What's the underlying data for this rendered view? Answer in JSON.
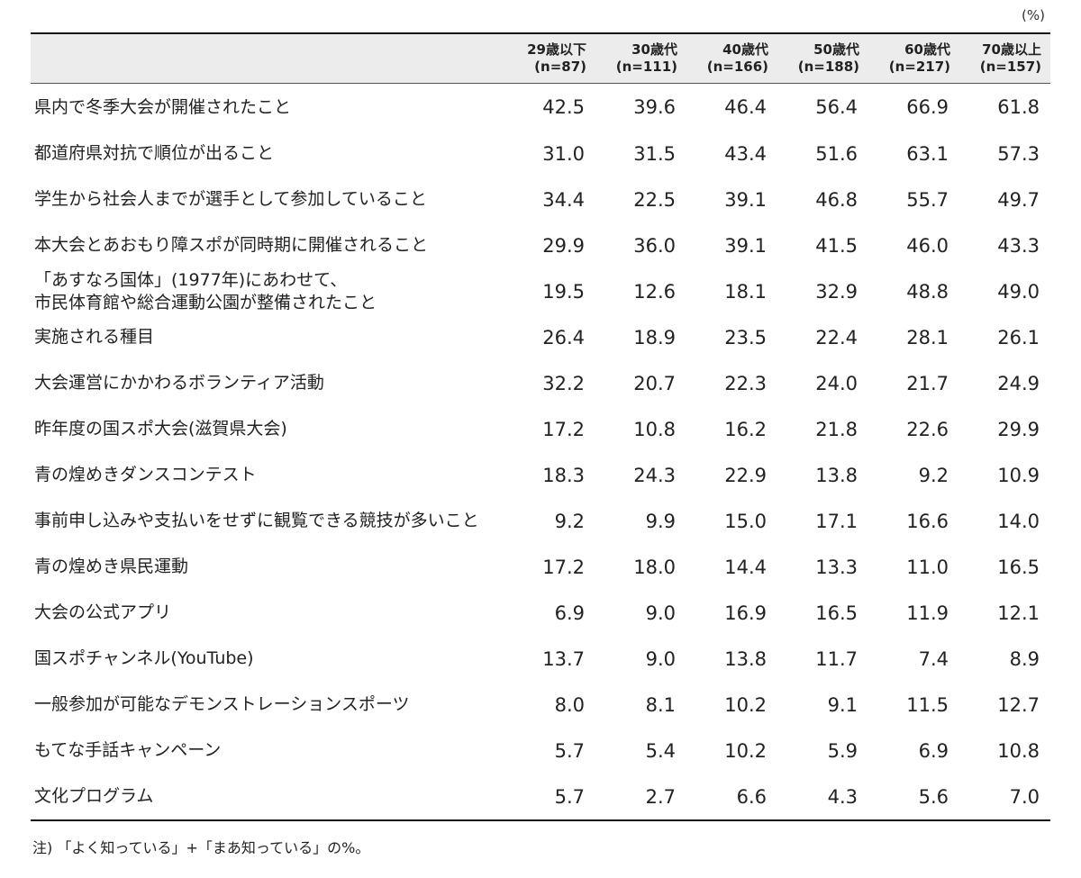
{
  "unit_label": "(%)",
  "table": {
    "columns": [
      {
        "line1": "29歳以下",
        "line2": "(n=87)"
      },
      {
        "line1": "30歳代",
        "line2": "(n=111)"
      },
      {
        "line1": "40歳代",
        "line2": "(n=166)"
      },
      {
        "line1": "50歳代",
        "line2": "(n=188)"
      },
      {
        "line1": "60歳代",
        "line2": "(n=217)"
      },
      {
        "line1": "70歳以上",
        "line2": "(n=157)"
      }
    ],
    "rows": [
      {
        "label": "県内で冬季大会が開催されたこと",
        "label2": "",
        "values": [
          "42.5",
          "39.6",
          "46.4",
          "56.4",
          "66.9",
          "61.8"
        ]
      },
      {
        "label": "都道府県対抗で順位が出ること",
        "label2": "",
        "values": [
          "31.0",
          "31.5",
          "43.4",
          "51.6",
          "63.1",
          "57.3"
        ]
      },
      {
        "label": "学生から社会人までが選手として参加していること",
        "label2": "",
        "values": [
          "34.4",
          "22.5",
          "39.1",
          "46.8",
          "55.7",
          "49.7"
        ]
      },
      {
        "label": "本大会とあおもり障スポが同時期に開催されること",
        "label2": "",
        "values": [
          "29.9",
          "36.0",
          "39.1",
          "41.5",
          "46.0",
          "43.3"
        ]
      },
      {
        "label": "「あすなろ国体」(1977年)にあわせて、",
        "label2": "市民体育館や総合運動公園が整備されたこと",
        "values": [
          "19.5",
          "12.6",
          "18.1",
          "32.9",
          "48.8",
          "49.0"
        ]
      },
      {
        "label": "実施される種目",
        "label2": "",
        "values": [
          "26.4",
          "18.9",
          "23.5",
          "22.4",
          "28.1",
          "26.1"
        ]
      },
      {
        "label": "大会運営にかかわるボランティア活動",
        "label2": "",
        "values": [
          "32.2",
          "20.7",
          "22.3",
          "24.0",
          "21.7",
          "24.9"
        ]
      },
      {
        "label": "昨年度の国スポ大会(滋賀県大会)",
        "label2": "",
        "values": [
          "17.2",
          "10.8",
          "16.2",
          "21.8",
          "22.6",
          "29.9"
        ]
      },
      {
        "label": "青の煌めきダンスコンテスト",
        "label2": "",
        "values": [
          "18.3",
          "24.3",
          "22.9",
          "13.8",
          "9.2",
          "10.9"
        ]
      },
      {
        "label": "事前申し込みや支払いをせずに観覧できる競技が多いこと",
        "label2": "",
        "values": [
          "9.2",
          "9.9",
          "15.0",
          "17.1",
          "16.6",
          "14.0"
        ]
      },
      {
        "label": "青の煌めき県民運動",
        "label2": "",
        "values": [
          "17.2",
          "18.0",
          "14.4",
          "13.3",
          "11.0",
          "16.5"
        ]
      },
      {
        "label": "大会の公式アプリ",
        "label2": "",
        "values": [
          "6.9",
          "9.0",
          "16.9",
          "16.5",
          "11.9",
          "12.1"
        ]
      },
      {
        "label": "国スポチャンネル(YouTube)",
        "label2": "",
        "values": [
          "13.7",
          "9.0",
          "13.8",
          "11.7",
          "7.4",
          "8.9"
        ]
      },
      {
        "label": "一般参加が可能なデモンストレーションスポーツ",
        "label2": "",
        "values": [
          "8.0",
          "8.1",
          "10.2",
          "9.1",
          "11.5",
          "12.7"
        ]
      },
      {
        "label": "もてな手話キャンペーン",
        "label2": "",
        "values": [
          "5.7",
          "5.4",
          "10.2",
          "5.9",
          "6.9",
          "10.8"
        ]
      },
      {
        "label": "文化プログラム",
        "label2": "",
        "values": [
          "5.7",
          "2.7",
          "6.6",
          "4.3",
          "5.6",
          "7.0"
        ]
      }
    ]
  },
  "note": "注) 「よく知っている」+「まあ知っている」の%。"
}
